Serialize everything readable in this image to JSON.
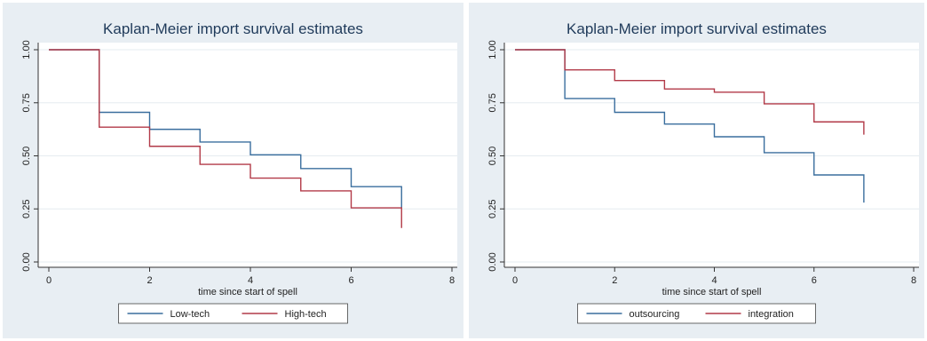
{
  "chart_data": [
    {
      "type": "line",
      "step": true,
      "title": "Kaplan-Meier import survival estimates",
      "xlabel": "time since start of spell",
      "ylabel": "",
      "xlim": [
        0,
        8
      ],
      "ylim": [
        0,
        1
      ],
      "xticks": [
        "0",
        "2",
        "4",
        "6",
        "8"
      ],
      "yticks": [
        "0.00",
        "0.25",
        "0.50",
        "0.75",
        "1.00"
      ],
      "grid": true,
      "legend": "bottom",
      "series": [
        {
          "name": "Low-tech",
          "color": "#3a6e9e",
          "x": [
            0,
            1,
            2,
            3,
            4,
            5,
            6,
            7
          ],
          "y": [
            1.0,
            0.705,
            0.625,
            0.565,
            0.505,
            0.44,
            0.355,
            0.255
          ],
          "end": 0.255
        },
        {
          "name": "High-tech",
          "color": "#b23a48",
          "x": [
            0,
            1,
            2,
            3,
            4,
            5,
            6,
            7
          ],
          "y": [
            1.0,
            0.635,
            0.545,
            0.46,
            0.395,
            0.335,
            0.255,
            0.255
          ],
          "end": 0.16
        }
      ]
    },
    {
      "type": "line",
      "step": true,
      "title": "Kaplan-Meier import survival estimates",
      "xlabel": "time since start of spell",
      "ylabel": "",
      "xlim": [
        0,
        8
      ],
      "ylim": [
        0,
        1
      ],
      "xticks": [
        "0",
        "2",
        "4",
        "6",
        "8"
      ],
      "yticks": [
        "0.00",
        "0.25",
        "0.50",
        "0.75",
        "1.00"
      ],
      "grid": true,
      "legend": "bottom",
      "series": [
        {
          "name": "outsourcing",
          "color": "#3a6e9e",
          "x": [
            0,
            1,
            2,
            3,
            4,
            5,
            6,
            7
          ],
          "y": [
            1.0,
            0.77,
            0.705,
            0.65,
            0.59,
            0.515,
            0.41,
            0.41
          ],
          "end": 0.28
        },
        {
          "name": "integration",
          "color": "#b23a48",
          "x": [
            0,
            1,
            2,
            3,
            4,
            5,
            6,
            7
          ],
          "y": [
            1.0,
            0.905,
            0.855,
            0.815,
            0.8,
            0.745,
            0.66,
            0.66
          ],
          "end": 0.6
        }
      ]
    }
  ],
  "style": {
    "outer_bg": "#e8eef3",
    "plot_bg": "#ffffff",
    "grid_color": "#e6ecf0",
    "title_color": "#1f3a5a"
  }
}
